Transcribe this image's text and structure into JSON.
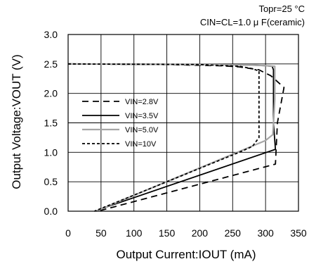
{
  "header": {
    "line1": "Topr=25 °C",
    "line2": "CIN=CL=1.0 μ F(ceramic)"
  },
  "chart_data": {
    "type": "line",
    "xlabel": "Output Current:IOUT (mA)",
    "ylabel": "Output Voltage:VOUT (V)",
    "xlim": [
      0,
      350
    ],
    "ylim": [
      0,
      3.0
    ],
    "xticks": [
      0,
      50,
      100,
      150,
      200,
      250,
      300,
      350
    ],
    "yticks": [
      0.0,
      0.5,
      1.0,
      1.5,
      2.0,
      2.5,
      3.0
    ],
    "xtick_labels": [
      "0",
      "50",
      "100",
      "150",
      "200",
      "250",
      "300",
      "350"
    ],
    "ytick_labels": [
      "0.0",
      "0.5",
      "1.0",
      "1.5",
      "2.0",
      "2.5",
      "3.0"
    ],
    "grid": true,
    "legend_position": "left-middle",
    "series": [
      {
        "name": "VIN=2.8V",
        "style": "dashed",
        "color": "#000000",
        "x": [
          0,
          150,
          230,
          260,
          290,
          308,
          318,
          328,
          318,
          315,
          45
        ],
        "y": [
          2.5,
          2.49,
          2.47,
          2.45,
          2.4,
          2.3,
          2.2,
          2.1,
          1.5,
          0.8,
          0.0
        ]
      },
      {
        "name": "VIN=3.5V",
        "style": "solid",
        "color": "#000000",
        "x": [
          0,
          200,
          280,
          300,
          310,
          312,
          312,
          315,
          45
        ],
        "y": [
          2.5,
          2.49,
          2.48,
          2.47,
          2.46,
          2.4,
          1.5,
          1.05,
          0.02
        ]
      },
      {
        "name": "VIN=5.0V",
        "style": "solid",
        "color": "#a6a6a6",
        "x": [
          0,
          200,
          280,
          300,
          314,
          314,
          311,
          300,
          42
        ],
        "y": [
          2.5,
          2.49,
          2.48,
          2.47,
          2.46,
          1.9,
          1.3,
          1.2,
          0.0
        ]
      },
      {
        "name": "VIN=10V",
        "style": "dotted",
        "color": "#000000",
        "x": [
          0,
          200,
          260,
          280,
          290,
          290,
          290,
          290,
          280,
          260,
          40
        ],
        "y": [
          2.5,
          2.49,
          2.46,
          2.42,
          2.38,
          2.0,
          1.5,
          1.25,
          1.1,
          1.0,
          0.0
        ]
      }
    ]
  }
}
